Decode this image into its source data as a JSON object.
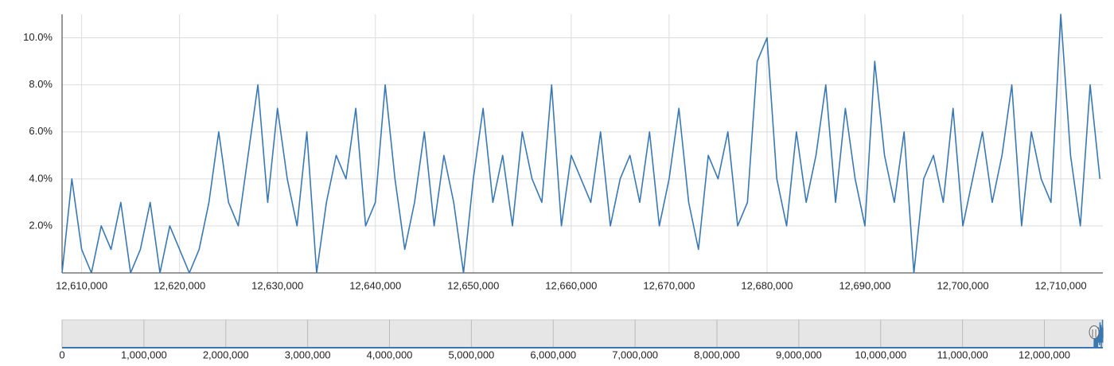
{
  "chart_data": {
    "type": "line",
    "x": [
      12608000,
      12609000,
      12610000,
      12611000,
      12612000,
      12613000,
      12614000,
      12615000,
      12616000,
      12617000,
      12618000,
      12619000,
      12620000,
      12621000,
      12622000,
      12623000,
      12624000,
      12625000,
      12626000,
      12627000,
      12628000,
      12629000,
      12630000,
      12631000,
      12632000,
      12633000,
      12634000,
      12635000,
      12636000,
      12637000,
      12638000,
      12639000,
      12640000,
      12641000,
      12642000,
      12643000,
      12644000,
      12645000,
      12646000,
      12647000,
      12648000,
      12649000,
      12650000,
      12651000,
      12652000,
      12653000,
      12654000,
      12655000,
      12656000,
      12657000,
      12658000,
      12659000,
      12660000,
      12661000,
      12662000,
      12663000,
      12664000,
      12665000,
      12666000,
      12667000,
      12668000,
      12669000,
      12670000,
      12671000,
      12672000,
      12673000,
      12674000,
      12675000,
      12676000,
      12677000,
      12678000,
      12679000,
      12680000,
      12681000,
      12682000,
      12683000,
      12684000,
      12685000,
      12686000,
      12687000,
      12688000,
      12689000,
      12690000,
      12691000,
      12692000,
      12693000,
      12694000,
      12695000,
      12696000,
      12697000,
      12698000,
      12699000,
      12700000,
      12701000,
      12702000,
      12703000,
      12704000,
      12705000,
      12706000,
      12707000,
      12708000,
      12709000,
      12710000,
      12711000,
      12712000,
      12713000,
      12714000
    ],
    "series": [
      {
        "color": "#3a78b4",
        "values": [
          0,
          4,
          1,
          0,
          2,
          1,
          3,
          0,
          1,
          3,
          0,
          2,
          1,
          0,
          1,
          3,
          6,
          3,
          2,
          5,
          8,
          3,
          7,
          4,
          2,
          6,
          0,
          3,
          5,
          4,
          7,
          2,
          3,
          8,
          4,
          1,
          3,
          6,
          2,
          5,
          3,
          0,
          4,
          7,
          3,
          5,
          2,
          6,
          4,
          3,
          8,
          2,
          5,
          4,
          3,
          6,
          2,
          4,
          5,
          3,
          6,
          2,
          4,
          7,
          3,
          1,
          5,
          4,
          6,
          2,
          3,
          9,
          10,
          4,
          2,
          6,
          3,
          5,
          8,
          3,
          7,
          4,
          2,
          9,
          5,
          3,
          6,
          0,
          4,
          5,
          3,
          7,
          2,
          4,
          6,
          3,
          5,
          8,
          2,
          6,
          4,
          3,
          11,
          5,
          2,
          8,
          4
        ]
      }
    ],
    "xlim": [
      12608000,
      12714300
    ],
    "xticks": [
      {
        "value": 12610000,
        "label": "12,610,000"
      },
      {
        "value": 12620000,
        "label": "12,620,000"
      },
      {
        "value": 12630000,
        "label": "12,630,000"
      },
      {
        "value": 12640000,
        "label": "12,640,000"
      },
      {
        "value": 12650000,
        "label": "12,650,000"
      },
      {
        "value": 12660000,
        "label": "12,660,000"
      },
      {
        "value": 12670000,
        "label": "12,670,000"
      },
      {
        "value": 12680000,
        "label": "12,680,000"
      },
      {
        "value": 12690000,
        "label": "12,690,000"
      },
      {
        "value": 12700000,
        "label": "12,700,000"
      },
      {
        "value": 12710000,
        "label": "12,710,000"
      }
    ],
    "ylim": [
      0,
      11
    ],
    "yticks": [
      {
        "value": 2,
        "label": "2.0%"
      },
      {
        "value": 4,
        "label": "4.0%"
      },
      {
        "value": 6,
        "label": "6.0%"
      },
      {
        "value": 8,
        "label": "8.0%"
      },
      {
        "value": 10,
        "label": "10.0%"
      }
    ],
    "grid": true,
    "navigator": {
      "xlim": [
        0,
        12714300
      ],
      "xticks": [
        0,
        {
          "value": 1000000,
          "label": "1,000,000"
        },
        {
          "value": 2000000,
          "label": "2,000,000"
        },
        {
          "value": 3000000,
          "label": "3,000,000"
        },
        {
          "value": 4000000,
          "label": "4,000,000"
        },
        {
          "value": 5000000,
          "label": "5,000,000"
        },
        {
          "value": 6000000,
          "label": "6,000,000"
        },
        {
          "value": 7000000,
          "label": "7,000,000"
        },
        {
          "value": 8000000,
          "label": "8,000,000"
        },
        {
          "value": 9000000,
          "label": "9,000,000"
        },
        {
          "value": 10000000,
          "label": "10,000,000"
        },
        {
          "value": 11000000,
          "label": "11,000,000"
        },
        {
          "value": 12000000,
          "label": "12,000,000"
        }
      ]
    }
  }
}
